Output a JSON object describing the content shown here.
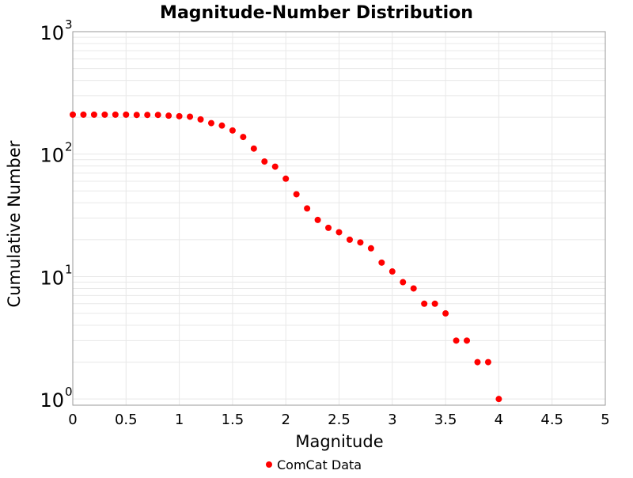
{
  "chart_data": {
    "type": "scatter",
    "title": "Magnitude-Number Distribution",
    "xlabel": "Magnitude",
    "ylabel": "Cumulative Number",
    "xlim": [
      0,
      5
    ],
    "ylim": [
      0.89,
      1000
    ],
    "yscale": "log",
    "grid": true,
    "legend_position": "bottom",
    "x_ticks": [
      "0",
      "0.5",
      "1",
      "1.5",
      "2",
      "2.5",
      "3",
      "3.5",
      "4",
      "4.5",
      "5"
    ],
    "y_ticks": [
      {
        "base": "10",
        "exp": "0"
      },
      {
        "base": "10",
        "exp": "1"
      },
      {
        "base": "10",
        "exp": "2"
      },
      {
        "base": "10",
        "exp": "3"
      }
    ],
    "series": [
      {
        "name": "ComCat Data",
        "color": "#ff0000",
        "x": [
          0.0,
          0.1,
          0.2,
          0.3,
          0.4,
          0.5,
          0.6,
          0.7,
          0.8,
          0.9,
          1.0,
          1.1,
          1.2,
          1.3,
          1.4,
          1.5,
          1.6,
          1.7,
          1.8,
          1.9,
          2.0,
          2.1,
          2.2,
          2.3,
          2.4,
          2.5,
          2.6,
          2.7,
          2.8,
          2.9,
          3.0,
          3.1,
          3.2,
          3.3,
          3.4,
          3.5,
          3.6,
          3.7,
          3.8,
          3.9,
          4.0
        ],
        "y": [
          210,
          210,
          210,
          210,
          210,
          210,
          209,
          209,
          209,
          206,
          204,
          202,
          192,
          179,
          171,
          156,
          138,
          111,
          87,
          79,
          63,
          47,
          36,
          29,
          25,
          23,
          20,
          19,
          17,
          13,
          11,
          9,
          8,
          6,
          6,
          5,
          3,
          3,
          2,
          2,
          1
        ]
      }
    ]
  }
}
